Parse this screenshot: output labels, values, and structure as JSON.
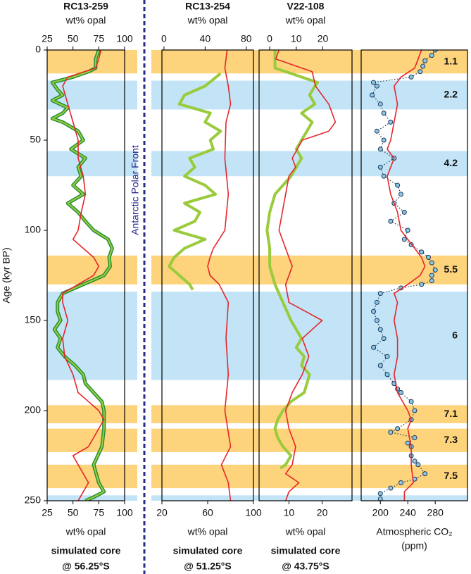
{
  "chart_data": [
    {
      "type": "line",
      "title": "RC13-259",
      "y_label": "Age (kyr BP)",
      "ylim": [
        0,
        250
      ],
      "yticks": [
        0,
        50,
        100,
        150,
        200,
        250
      ],
      "x2_label": "wt% opal",
      "x2lim": [
        25,
        100
      ],
      "x2ticks": [
        25,
        50,
        75,
        100
      ],
      "x_label": [
        "wt% opal"
      ],
      "xlim": [
        25,
        100
      ],
      "xticks": [
        25,
        50,
        75,
        100
      ],
      "subtitle": [
        "simulated core",
        "@ 56.25°S"
      ],
      "series": [
        {
          "axis": "x2",
          "color": "#9acb3c",
          "outline": "#1e8c3a",
          "ages": [
            0,
            5,
            10,
            12,
            15,
            18,
            22,
            25,
            28,
            32,
            35,
            38,
            40,
            45,
            50,
            55,
            60,
            65,
            70,
            75,
            80,
            85,
            90,
            95,
            100,
            105,
            110,
            115,
            120,
            125,
            130,
            135,
            140,
            145,
            150,
            155,
            160,
            165,
            170,
            175,
            180,
            185,
            190,
            195,
            200,
            210,
            220,
            230,
            240,
            245,
            248,
            250
          ],
          "values": [
            75,
            72,
            72,
            65,
            50,
            30,
            35,
            40,
            30,
            45,
            40,
            30,
            40,
            55,
            60,
            48,
            62,
            55,
            58,
            50,
            60,
            45,
            55,
            62,
            70,
            84,
            88,
            85,
            86,
            80,
            60,
            40,
            35,
            35,
            38,
            32,
            38,
            35,
            42,
            52,
            60,
            62,
            70,
            78,
            80,
            80,
            78,
            70,
            75,
            80,
            70,
            62
          ]
        },
        {
          "axis": "x",
          "color": "#e5262b",
          "ages": [
            0,
            5,
            10,
            15,
            20,
            30,
            40,
            50,
            60,
            70,
            80,
            90,
            100,
            105,
            110,
            115,
            120,
            125,
            130,
            135,
            140,
            150,
            160,
            170,
            180,
            190,
            195,
            200,
            205,
            210,
            215,
            220,
            225,
            230,
            240,
            245,
            250
          ],
          "values": [
            77,
            75,
            72,
            45,
            40,
            45,
            50,
            55,
            55,
            60,
            62,
            58,
            55,
            50,
            60,
            70,
            75,
            70,
            55,
            40,
            40,
            45,
            40,
            42,
            50,
            55,
            65,
            75,
            80,
            75,
            70,
            65,
            50,
            55,
            65,
            60,
            55
          ]
        }
      ]
    },
    {
      "type": "line",
      "title": "RC13-254",
      "x2_label": "wt% opal",
      "x2lim": [
        -2,
        87
      ],
      "x2ticks": [
        0,
        40,
        80
      ],
      "x_label": [
        "wt% opal"
      ],
      "xlim": [
        20,
        100
      ],
      "xticks": [
        20,
        60,
        100
      ],
      "subtitle": [
        "simulated core",
        "@ 51.25°S"
      ],
      "series": [
        {
          "axis": "x2",
          "color": "#9acb3c",
          "ages": [
            13,
            20,
            25,
            30,
            35,
            40,
            45,
            50,
            55,
            60,
            65,
            70,
            75,
            80,
            85,
            90,
            95,
            100,
            105,
            110,
            115,
            120,
            125,
            130,
            133
          ],
          "values": [
            55,
            40,
            20,
            15,
            45,
            40,
            55,
            45,
            48,
            25,
            30,
            20,
            40,
            50,
            20,
            35,
            30,
            10,
            40,
            20,
            10,
            5,
            15,
            25,
            28
          ]
        },
        {
          "axis": "x",
          "color": "#e5262b",
          "ages": [
            0,
            10,
            20,
            30,
            40,
            60,
            80,
            100,
            110,
            115,
            120,
            125,
            130,
            140,
            160,
            180,
            200,
            220,
            230,
            240,
            250
          ],
          "values": [
            77,
            75,
            78,
            80,
            76,
            75,
            78,
            75,
            65,
            62,
            60,
            62,
            70,
            78,
            76,
            78,
            75,
            80,
            72,
            78,
            80
          ]
        }
      ]
    },
    {
      "type": "line",
      "title": "V22-108",
      "x2_label": "wt% opal",
      "x2lim": [
        -4,
        31
      ],
      "x2ticks": [
        0,
        10,
        20
      ],
      "x_label": [
        "wt% opal"
      ],
      "xlim": [
        1,
        29
      ],
      "xticks": [
        10,
        20
      ],
      "subtitle": [
        "simulated core",
        "@ 43.75°S"
      ],
      "series": [
        {
          "axis": "x2",
          "color": "#9acb3c",
          "ages": [
            0,
            5,
            10,
            15,
            18,
            20,
            25,
            30,
            35,
            40,
            45,
            50,
            55,
            60,
            65,
            70,
            80,
            90,
            100,
            110,
            120,
            130,
            140,
            150,
            155,
            160,
            165,
            170,
            175,
            180,
            185,
            190,
            195,
            200,
            205,
            210,
            215,
            220,
            225,
            230,
            232
          ],
          "values": [
            2,
            2,
            2,
            12,
            18,
            17,
            15,
            17,
            12,
            16,
            14,
            12,
            10,
            12,
            10,
            8,
            2,
            0,
            -1,
            0,
            0,
            2,
            5,
            8,
            10,
            12,
            10,
            13,
            12,
            15,
            14,
            13,
            8,
            5,
            3,
            2,
            3,
            5,
            8,
            6,
            4
          ]
        },
        {
          "axis": "x",
          "color": "#e5262b",
          "ages": [
            0,
            5,
            12,
            20,
            30,
            40,
            45,
            50,
            60,
            65,
            70,
            80,
            90,
            100,
            110,
            120,
            130,
            140,
            145,
            150,
            155,
            160,
            170,
            180,
            190,
            200,
            210,
            220,
            230,
            235,
            240,
            245,
            250
          ],
          "values": [
            7,
            6,
            17,
            18,
            22,
            24,
            22,
            14,
            11,
            12,
            10,
            9,
            8,
            7,
            9,
            11,
            9,
            10,
            15,
            20,
            17,
            14,
            16,
            14,
            11,
            9,
            10,
            12,
            11,
            9,
            13,
            10,
            9
          ]
        }
      ]
    },
    {
      "type": "line",
      "x_label": [
        "Atmospheric CO₂",
        "(ppm)"
      ],
      "xlim": [
        172,
        327
      ],
      "xticks": [
        200,
        240,
        280
      ],
      "series": [
        {
          "axis": "x",
          "color": "#8cc8e6",
          "outline": "#1d3557",
          "markers": true,
          "ages": [
            0,
            3,
            6,
            9,
            12,
            15,
            18,
            20,
            25,
            30,
            35,
            40,
            45,
            50,
            55,
            60,
            65,
            70,
            75,
            80,
            85,
            90,
            95,
            100,
            105,
            108,
            112,
            115,
            118,
            122,
            125,
            128,
            130,
            132,
            135,
            140,
            145,
            150,
            155,
            160,
            165,
            170,
            175,
            180,
            185,
            188,
            190,
            195,
            200,
            205,
            210,
            212,
            215,
            218,
            220,
            225,
            228,
            230,
            235,
            238,
            240,
            243,
            246,
            249
          ],
          "values": [
            280,
            275,
            265,
            262,
            258,
            245,
            190,
            195,
            188,
            200,
            205,
            215,
            195,
            205,
            200,
            220,
            200,
            205,
            225,
            230,
            220,
            235,
            215,
            240,
            235,
            245,
            260,
            270,
            275,
            280,
            275,
            275,
            260,
            230,
            200,
            195,
            190,
            195,
            200,
            205,
            190,
            210,
            200,
            210,
            220,
            225,
            230,
            245,
            250,
            245,
            225,
            215,
            250,
            240,
            245,
            245,
            250,
            255,
            265,
            250,
            230,
            215,
            200,
            200
          ]
        },
        {
          "axis": "x",
          "color": "#e5262b",
          "ages": [
            0,
            5,
            10,
            15,
            20,
            30,
            40,
            50,
            55,
            60,
            70,
            80,
            90,
            100,
            105,
            110,
            115,
            120,
            125,
            130,
            135,
            140,
            150,
            160,
            170,
            180,
            190,
            200,
            205,
            210,
            220,
            230,
            240,
            245,
            250
          ],
          "values": [
            260,
            255,
            250,
            230,
            220,
            225,
            220,
            215,
            210,
            220,
            210,
            215,
            225,
            230,
            240,
            250,
            260,
            265,
            258,
            240,
            220,
            225,
            220,
            225,
            225,
            220,
            225,
            240,
            245,
            240,
            245,
            245,
            248,
            235,
            235
          ]
        }
      ]
    }
  ],
  "front_label": "Antarctic Polar Front",
  "front_color": "#2a2a8a",
  "stages": [
    {
      "label": "1.1",
      "from": 0,
      "to": 13,
      "color": "#fdd37b"
    },
    {
      "label": "2.2",
      "from": 17,
      "to": 33,
      "color": "#c2e4f6"
    },
    {
      "label": "4.2",
      "from": 56,
      "to": 70,
      "color": "#c2e4f6"
    },
    {
      "label": "5.5",
      "from": 114,
      "to": 130,
      "color": "#fdd37b"
    },
    {
      "label": "6",
      "from": 134,
      "to": 183,
      "color": "#c2e4f6"
    },
    {
      "label": "7.1",
      "from": 197,
      "to": 207,
      "color": "#fdd37b"
    },
    {
      "label": "7.3",
      "from": 210,
      "to": 223,
      "color": "#fdd37b"
    },
    {
      "label": "7.5",
      "from": 230,
      "to": 243,
      "color": "#fdd37b"
    },
    {
      "from": 247,
      "to": 250,
      "color": "#c2e4f6"
    }
  ]
}
